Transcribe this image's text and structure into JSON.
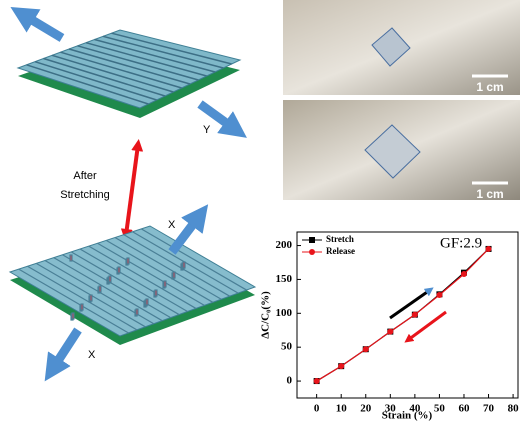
{
  "labels": {
    "after": "After",
    "stretching": "Stretching",
    "y_top": "Y",
    "x_upper": "X",
    "x_lower": "X",
    "scale_top": "1 cm",
    "scale_bottom": "1 cm"
  },
  "chart_data": {
    "type": "line",
    "annotation": "GF:2.9",
    "x_label": "Strain (%)",
    "y_label": "ΔC/C₀(%)",
    "x": [
      0,
      10,
      20,
      30,
      40,
      50,
      60,
      70
    ],
    "series": [
      {
        "name": "Stretch",
        "color": "#000000",
        "marker": "square",
        "values": [
          0,
          22,
          47,
          73,
          98,
          128,
          160,
          195
        ]
      },
      {
        "name": "Release",
        "color": "#e8141b",
        "marker": "circle",
        "values": [
          0,
          22,
          47,
          73,
          98,
          127,
          158,
          195
        ]
      }
    ],
    "xlim": [
      -8,
      82
    ],
    "xticks": [
      0,
      10,
      20,
      30,
      40,
      50,
      60,
      70,
      80
    ],
    "ylim": [
      -25,
      220
    ],
    "yticks": [
      0,
      50,
      100,
      150,
      200
    ],
    "legend": "upper left"
  }
}
